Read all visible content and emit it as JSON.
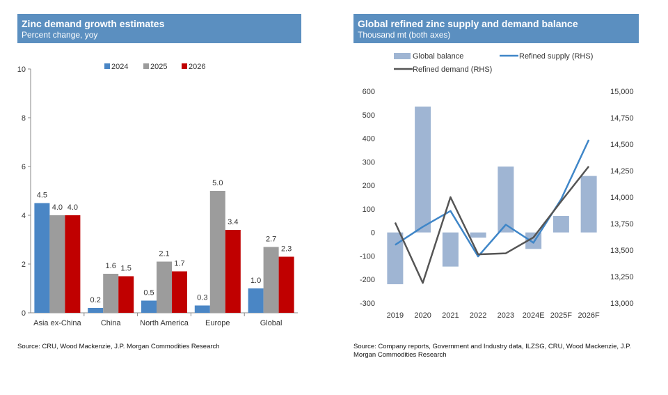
{
  "left_panel": {
    "title": "Zinc demand growth estimates",
    "subtitle": "Percent change, yoy",
    "source": "Source: CRU, Wood Mackenzie, J.P. Morgan Commodities Research"
  },
  "right_panel": {
    "title": "Global refined zinc supply and demand balance",
    "subtitle": "Thousand mt (both axes)",
    "source": "Source: Company reports, Government and Industry data, ILZSG, CRU, Wood Mackenzie, J.P. Morgan Commodities Research"
  },
  "colors": {
    "header_bg": "#5b8fc0",
    "s2024": "#4a86c5",
    "s2025": "#9c9c9c",
    "s2026": "#c00000",
    "balance": "#9fb5d3",
    "supply": "#3f86c8",
    "demand": "#555555"
  },
  "chart_data": [
    {
      "type": "bar",
      "title": "Zinc demand growth estimates",
      "subtitle": "Percent change, yoy",
      "categories": [
        "Asia ex-China",
        "China",
        "North America",
        "Europe",
        "Global"
      ],
      "series": [
        {
          "name": "2024",
          "values": [
            4.5,
            0.2,
            0.5,
            0.3,
            1.0
          ],
          "labels": [
            "4.5",
            "0.2",
            "0.5",
            "0.3",
            "1.0"
          ]
        },
        {
          "name": "2025",
          "values": [
            4.0,
            1.6,
            2.1,
            5.0,
            2.7
          ],
          "labels": [
            "4.0",
            "1.6",
            "2.1",
            "5.0",
            "2.7"
          ]
        },
        {
          "name": "2026",
          "values": [
            4.0,
            1.5,
            1.7,
            3.4,
            2.3
          ],
          "labels": [
            "4.0",
            "1.5",
            "1.7",
            "3.4",
            "2.3"
          ]
        }
      ],
      "ylim": [
        0,
        10
      ],
      "yticks": [
        "0",
        "2",
        "4",
        "6",
        "8",
        "10"
      ],
      "legend": "top",
      "grid": false
    },
    {
      "type": "bar+line",
      "title": "Global refined zinc supply and demand balance",
      "subtitle": "Thousand mt (both axes)",
      "categories": [
        "2019",
        "2020",
        "2021",
        "2022",
        "2023",
        "2024E",
        "2025F",
        "2026F"
      ],
      "series": [
        {
          "name": "Global balance",
          "type": "bar",
          "axis": "left",
          "values": [
            -220,
            535,
            -145,
            -22,
            280,
            -70,
            70,
            240
          ]
        },
        {
          "name": "Refined supply (RHS)",
          "type": "line",
          "axis": "right",
          "values": [
            13550,
            13720,
            13870,
            13440,
            13740,
            13570,
            13980,
            14540
          ]
        },
        {
          "name": "Refined demand (RHS)",
          "type": "line",
          "axis": "right",
          "values": [
            13760,
            13190,
            14000,
            13460,
            13470,
            13620,
            13960,
            14290
          ]
        }
      ],
      "ylim_left": [
        -300,
        600
      ],
      "yticks_left": [
        "-300",
        "-200",
        "-100",
        "0",
        "100",
        "200",
        "300",
        "400",
        "500",
        "600"
      ],
      "ylim_right": [
        13000,
        15000
      ],
      "yticks_right": [
        "13,000",
        "13,250",
        "13,500",
        "13,750",
        "14,000",
        "14,250",
        "14,500",
        "14,750",
        "15,000"
      ],
      "legend": "top",
      "grid": false
    }
  ]
}
